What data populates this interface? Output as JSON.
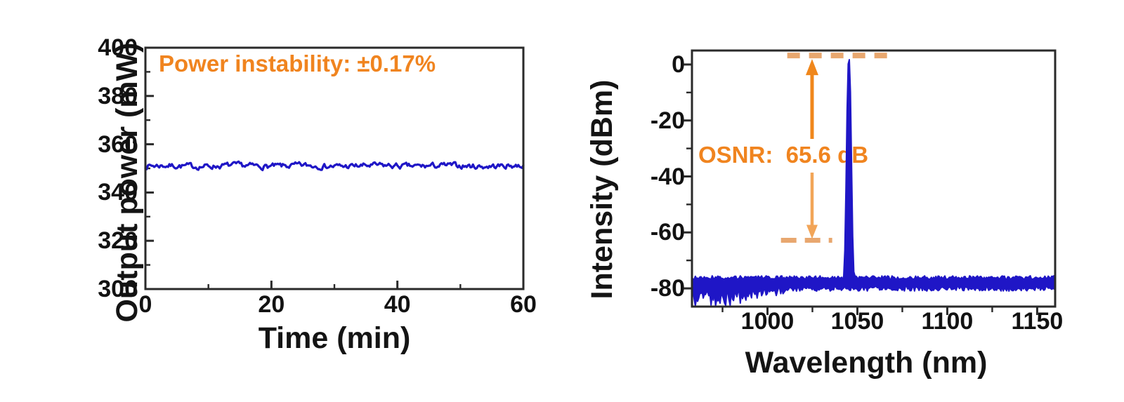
{
  "background": "#ffffff",
  "figure_kind": "two-panel scientific figure (laser output stability and optical spectrum)",
  "colors": {
    "trace_blue": "#1f16c6",
    "annotation_orange": "#f0841f",
    "marker_dash_orange": "#e8a76f",
    "arrow_orange": "#f0871c",
    "arrow_orange_light": "#f2a558",
    "axis": "#2a2a2a",
    "tick_text": "#121212"
  },
  "chart_data": [
    {
      "id": "power-stability",
      "type": "line",
      "title": "",
      "xlabel": "Time (min)",
      "ylabel": "Output power (mW)",
      "xlim": [
        0,
        60
      ],
      "ylim": [
        300,
        400
      ],
      "x_ticks": [
        0,
        20,
        40,
        60
      ],
      "y_ticks": [
        300,
        320,
        340,
        360,
        380,
        400
      ],
      "x_minor_ticks": [
        10,
        30,
        50
      ],
      "y_minor_ticks": [
        310,
        330,
        350,
        370,
        390
      ],
      "grid": false,
      "legend": null,
      "axis_color": "#2a2a2a",
      "annotation": {
        "text": "Power instability: ±0.17%",
        "color": "#f0841f"
      },
      "series": [
        {
          "name": "output power trace",
          "color": "#1f16c6",
          "baseline_mW": 351,
          "noise_peak_to_peak_mW": 3,
          "description": "flat noisy trace at ~351 mW over 0-60 min, fluctuation ±0.17%"
        }
      ]
    },
    {
      "id": "optical-spectrum",
      "type": "line",
      "title": "",
      "xlabel": "Wavelength (nm)",
      "ylabel": "Intensity (dBm)",
      "xlim": [
        958,
        1160
      ],
      "ylim": [
        -86.5,
        5
      ],
      "x_ticks": [
        1000,
        1050,
        1100,
        1150
      ],
      "y_ticks": [
        0,
        -20,
        -40,
        -60,
        -80
      ],
      "x_minor_ticks": [
        975,
        1025,
        1075,
        1125
      ],
      "y_minor_ticks": [
        -10,
        -30,
        -50,
        -70
      ],
      "grid": false,
      "legend": null,
      "axis_color": "#2a2a2a",
      "annotation": {
        "text": "OSNR:  65.6 dB",
        "color": "#f0841f"
      },
      "series": [
        {
          "name": "optical spectrum",
          "color": "#1f16c6",
          "noise_floor_dBm": -78,
          "noise_band_dB": 3,
          "left_noise_until_nm": 1016,
          "left_noise_extra_depth_dB": 8,
          "peak_wavelength_nm": 1045,
          "peak_intensity_dBm": 2.2,
          "peak_half_width_nm": 1.75,
          "description": "single narrow laser line at ~1045 nm reaching ~+2 dBm above a ~-78 dBm noise floor"
        }
      ],
      "osnr_marker": {
        "top_dash_level_dBm": 3.2,
        "top_dash_span_nm": [
          1011,
          1067
        ],
        "bottom_dash_level_dBm": -62.8,
        "bottom_dash_span_nm": [
          1007.5,
          1036
        ],
        "arrow_x_nm": 1024.8,
        "dash_color": "#e8a76f",
        "arrow_color": "#f0871c",
        "arrow_lower_color": "#f2a558"
      }
    }
  ]
}
